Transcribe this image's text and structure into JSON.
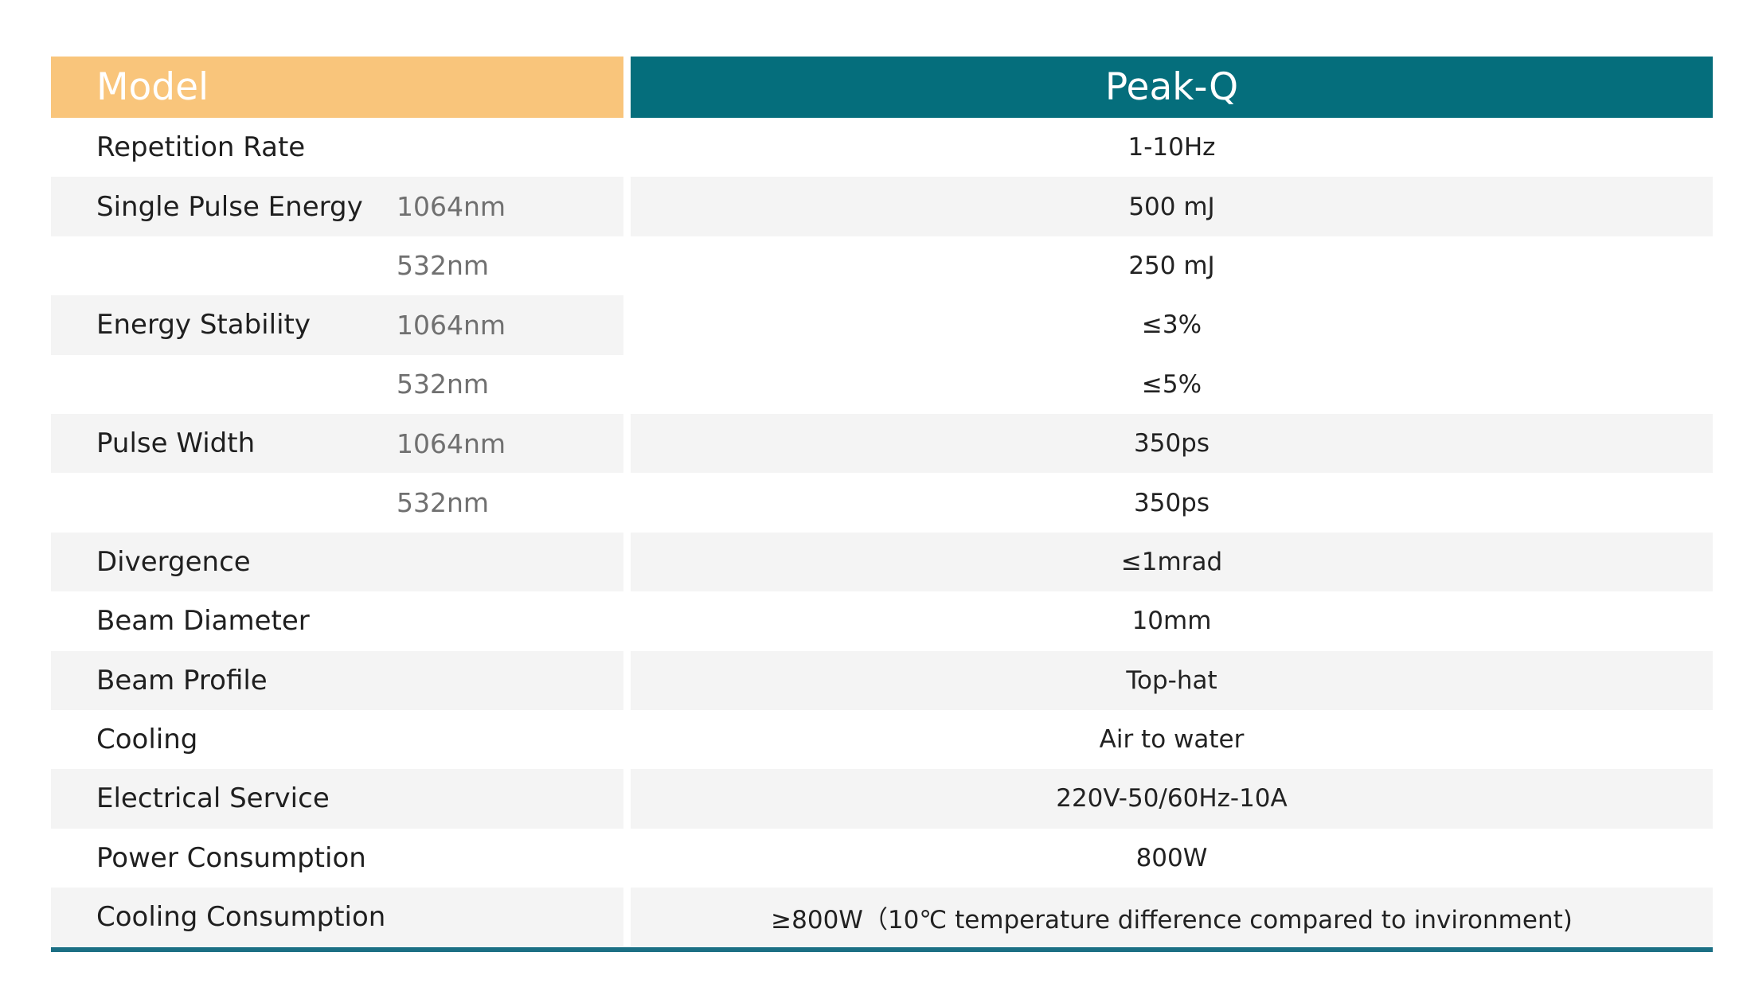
{
  "header": {
    "left": "Model",
    "right": "Peak-Q"
  },
  "rows": [
    {
      "param": "Repetition Rate",
      "sub": "",
      "value": "1-10Hz"
    },
    {
      "param": "Single Pulse Energy",
      "sub": "1064nm",
      "value": "500 mJ"
    },
    {
      "param": "",
      "sub": "532nm",
      "value": "250 mJ"
    },
    {
      "param": "Energy Stability",
      "sub": "1064nm",
      "value": "≤3%"
    },
    {
      "param": "",
      "sub": "532nm",
      "value": "≤5%"
    },
    {
      "param": "Pulse Width",
      "sub": "1064nm",
      "value": "350ps"
    },
    {
      "param": "",
      "sub": "532nm",
      "value": "350ps"
    },
    {
      "param": "Divergence",
      "sub": "",
      "value": "≤1mrad"
    },
    {
      "param": "Beam Diameter",
      "sub": "",
      "value": "10mm"
    },
    {
      "param": "Beam Profile",
      "sub": "",
      "value": "Top-hat"
    },
    {
      "param": "Cooling",
      "sub": "",
      "value": "Air to water"
    },
    {
      "param": "Electrical Service",
      "sub": "",
      "value": "220V-50/60Hz-10A"
    },
    {
      "param": "Power Consumption",
      "sub": "",
      "value": "800W"
    },
    {
      "param": "Cooling  Consumption",
      "sub": "",
      "value": "≥800W（10℃ temperature difference compared to invironment)"
    }
  ],
  "colors": {
    "header_left": "#f9c57b",
    "header_right": "#056e7c",
    "row_shade": "#f4f4f4",
    "bottom_rule": "#1b6f84"
  }
}
